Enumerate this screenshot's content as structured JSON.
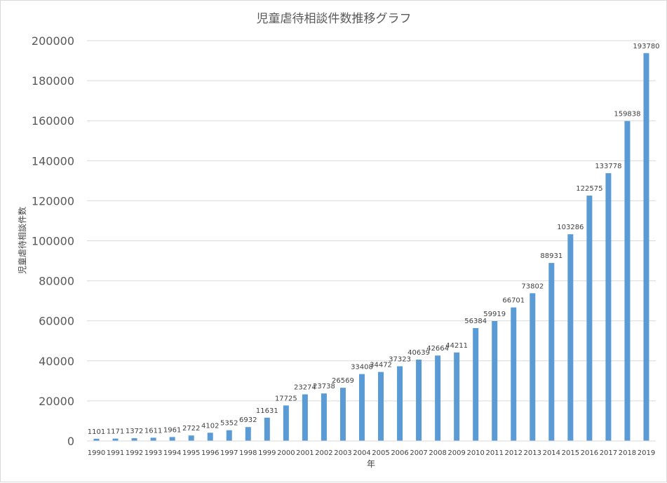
{
  "chart_data": {
    "type": "bar",
    "title": "児童虐待相談件数推移グラフ",
    "xlabel": "年",
    "ylabel": "児童虐待相談件数",
    "ylim": [
      0,
      200000
    ],
    "yticks": [
      0,
      20000,
      40000,
      60000,
      80000,
      100000,
      120000,
      140000,
      160000,
      180000,
      200000
    ],
    "grid": true,
    "legend": "none",
    "bar_color": "#5b9bd5",
    "categories": [
      "1990",
      "1991",
      "1992",
      "1993",
      "1994",
      "1995",
      "1996",
      "1997",
      "1998",
      "1999",
      "2000",
      "2001",
      "2002",
      "2003",
      "2004",
      "2005",
      "2006",
      "2007",
      "2008",
      "2009",
      "2010",
      "2011",
      "2012",
      "2013",
      "2014",
      "2015",
      "2016",
      "2017",
      "2018",
      "2019"
    ],
    "values": [
      1101,
      1171,
      1372,
      1611,
      1961,
      2722,
      4102,
      5352,
      6932,
      11631,
      17725,
      23274,
      23738,
      26569,
      33408,
      34472,
      37323,
      40639,
      42664,
      44211,
      56384,
      59919,
      66701,
      73802,
      88931,
      103286,
      122575,
      133778,
      159838,
      193780
    ]
  }
}
